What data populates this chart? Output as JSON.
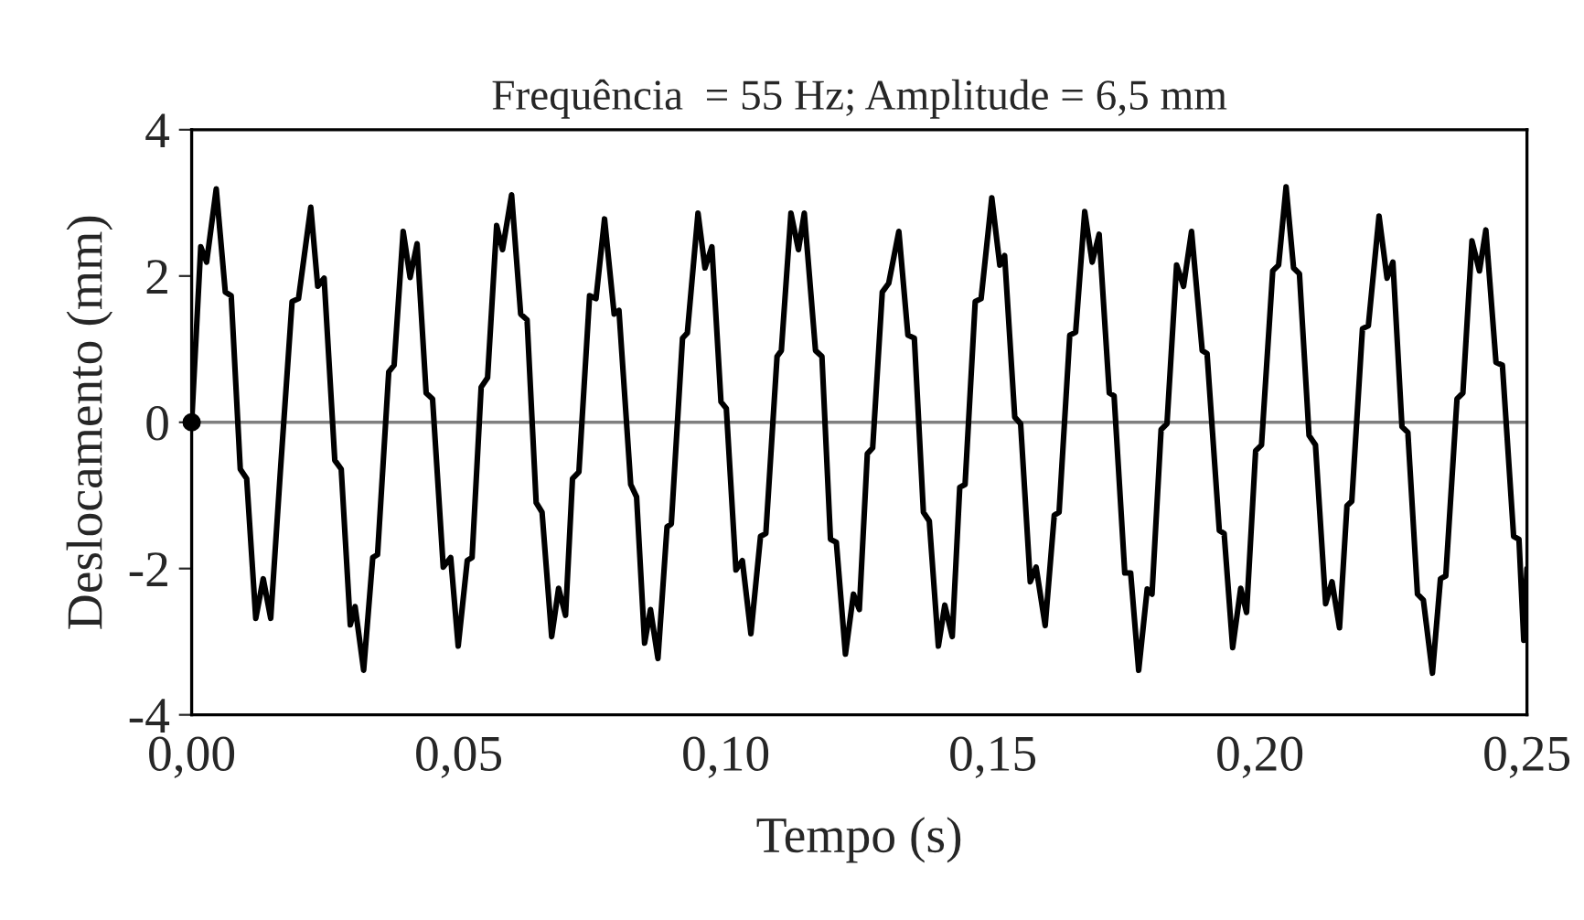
{
  "chart_data": {
    "type": "line",
    "title": "Frequência  = 55 Hz; Amplitude = 6,5 mm",
    "xlabel": "Tempo (s)",
    "ylabel": "Deslocamento (mm)",
    "xlim": [
      0,
      0.25
    ],
    "ylim": [
      -4,
      4
    ],
    "xticks": [
      {
        "value": 0,
        "label": "0,00"
      },
      {
        "value": 0.05,
        "label": "0,05"
      },
      {
        "value": 0.1,
        "label": "0,10"
      },
      {
        "value": 0.15,
        "label": "0,15"
      },
      {
        "value": 0.2,
        "label": "0,20"
      },
      {
        "value": 0.25,
        "label": "0,25"
      }
    ],
    "yticks": [
      {
        "value": -4,
        "label": "-4"
      },
      {
        "value": -2,
        "label": "-2"
      },
      0,
      2,
      4
    ],
    "grid": false,
    "legend": false,
    "marker": "none",
    "line_style": "solid",
    "ref_lines": [
      {
        "axis": "y",
        "value": 0,
        "color": "#808080"
      }
    ],
    "series": [
      {
        "color": "#000000",
        "x": [
          0,
          0.0017,
          0.0028,
          0.0046,
          0.0063,
          0.0074,
          0.0091,
          0.0103,
          0.012,
          0.0134,
          0.0148,
          0.0166,
          0.0188,
          0.02,
          0.0223,
          0.0236,
          0.0248,
          0.0268,
          0.028,
          0.0297,
          0.0306,
          0.0322,
          0.0339,
          0.0348,
          0.0369,
          0.0379,
          0.0396,
          0.0409,
          0.0422,
          0.0439,
          0.0451,
          0.0471,
          0.0485,
          0.0499,
          0.0516,
          0.0525,
          0.0542,
          0.0554,
          0.0571,
          0.0582,
          0.0599,
          0.0616,
          0.0628,
          0.0645,
          0.0656,
          0.0674,
          0.0687,
          0.07,
          0.0713,
          0.0725,
          0.0745,
          0.0757,
          0.0773,
          0.0791,
          0.08,
          0.0822,
          0.0833,
          0.0848,
          0.0859,
          0.0873,
          0.089,
          0.0898,
          0.0919,
          0.0928,
          0.0948,
          0.0961,
          0.0974,
          0.0991,
          0.1001,
          0.1019,
          0.1031,
          0.1047,
          0.1065,
          0.1075,
          0.1096,
          0.1104,
          0.1122,
          0.1136,
          0.1147,
          0.1168,
          0.118,
          0.1196,
          0.1207,
          0.1224,
          0.1239,
          0.125,
          0.1265,
          0.1275,
          0.1293,
          0.1305,
          0.1324,
          0.1341,
          0.1353,
          0.137,
          0.1381,
          0.1398,
          0.141,
          0.1424,
          0.1438,
          0.1448,
          0.1467,
          0.1478,
          0.1498,
          0.1513,
          0.1522,
          0.1541,
          0.1552,
          0.157,
          0.1581,
          0.1598,
          0.1615,
          0.1624,
          0.1644,
          0.1655,
          0.1672,
          0.1686,
          0.1699,
          0.1718,
          0.1727,
          0.1747,
          0.1758,
          0.1773,
          0.1789,
          0.1798,
          0.1815,
          0.1826,
          0.1844,
          0.1857,
          0.1872,
          0.1892,
          0.1901,
          0.1924,
          0.1933,
          0.1949,
          0.1964,
          0.1975,
          0.1992,
          0.2003,
          0.2024,
          0.2035,
          0.2049,
          0.2063,
          0.2074,
          0.2092,
          0.2104,
          0.2123,
          0.2135,
          0.2149,
          0.2163,
          0.2172,
          0.2192,
          0.2203,
          0.2223,
          0.2238,
          0.2249,
          0.2266,
          0.2277,
          0.2295,
          0.2306,
          0.2323,
          0.2338,
          0.2348,
          0.2369,
          0.238,
          0.2397,
          0.2411,
          0.2423,
          0.2442,
          0.2454,
          0.2475,
          0.2485,
          0.2494,
          0.25
        ],
        "values": [
          0,
          2.4,
          2.19,
          3.19,
          1.78,
          1.73,
          -0.64,
          -0.77,
          -2.68,
          -2.14,
          -2.68,
          -0.68,
          1.65,
          1.69,
          2.94,
          1.86,
          1.97,
          -0.52,
          -0.64,
          -2.77,
          -2.52,
          -3.39,
          -1.85,
          -1.81,
          0.69,
          0.78,
          2.61,
          1.98,
          2.44,
          0.4,
          0.32,
          -1.98,
          -1.85,
          -3.06,
          -1.89,
          -1.85,
          0.48,
          0.61,
          2.69,
          2.36,
          3.11,
          1.48,
          1.4,
          -1.1,
          -1.23,
          -2.93,
          -2.27,
          -2.64,
          -0.77,
          -0.68,
          1.73,
          1.69,
          2.78,
          1.48,
          1.53,
          -0.85,
          -1.02,
          -3.02,
          -2.56,
          -3.23,
          -1.43,
          -1.39,
          1.15,
          1.22,
          2.86,
          2.11,
          2.4,
          0.28,
          0.19,
          -2.02,
          -1.89,
          -2.89,
          -1.56,
          -1.52,
          0.9,
          0.98,
          2.86,
          2.36,
          2.86,
          0.98,
          0.9,
          -1.6,
          -1.64,
          -3.17,
          -2.35,
          -2.56,
          -0.43,
          -0.35,
          1.78,
          1.9,
          2.61,
          1.19,
          1.15,
          -1.23,
          -1.35,
          -3.06,
          -2.5,
          -2.93,
          -0.89,
          -0.85,
          1.65,
          1.69,
          3.07,
          2.15,
          2.28,
          0.07,
          -0.02,
          -2.18,
          -1.98,
          -2.78,
          -1.27,
          -1.23,
          1.19,
          1.23,
          2.88,
          2.19,
          2.57,
          0.4,
          0.36,
          -2.06,
          -2.06,
          -3.39,
          -2.28,
          -2.35,
          -0.1,
          -0.02,
          2.15,
          1.86,
          2.61,
          0.98,
          0.94,
          -1.48,
          -1.52,
          -3.08,
          -2.27,
          -2.6,
          -0.39,
          -0.31,
          2.07,
          2.15,
          3.22,
          2.11,
          2.03,
          -0.18,
          -0.31,
          -2.48,
          -2.18,
          -2.81,
          -1.14,
          -1.08,
          1.28,
          1.32,
          2.82,
          1.97,
          2.19,
          -0.06,
          -0.14,
          -2.35,
          -2.43,
          -3.43,
          -2.14,
          -2.1,
          0.32,
          0.4,
          2.48,
          2.07,
          2.63,
          0.82,
          0.78,
          -1.56,
          -1.6,
          -2.98,
          -2.0
        ]
      },
      {
        "type": "scatter",
        "color": "#000000",
        "marker": "circle",
        "x": [
          0
        ],
        "values": [
          0
        ]
      }
    ]
  }
}
